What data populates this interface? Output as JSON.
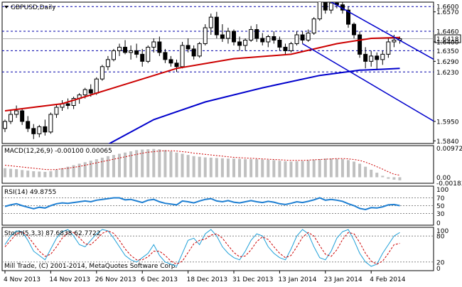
{
  "chart_data": {
    "type": "candlestick",
    "title": "GBPUSD,Daily",
    "watermark": "Mill Trade, (C) 2001-2014, MetaQuotes Software Corp.",
    "price_axis": {
      "ylim": [
        1.5825,
        1.6625
      ],
      "tick_labels": [
        "1.6570",
        "1.6400",
        "1.6290",
        "1.5950",
        "1.5840"
      ],
      "tick_values": [
        1.657,
        1.64,
        1.629,
        1.595,
        1.584
      ]
    },
    "price_levels": [
      {
        "label": "1.6600",
        "value": 1.66
      },
      {
        "label": "1.6460",
        "value": 1.646
      },
      {
        "label": "1.6418",
        "value": 1.6418,
        "current": true
      },
      {
        "label": "1.6350",
        "value": 1.635
      },
      {
        "label": "1.6230",
        "value": 1.623
      }
    ],
    "x_labels": [
      "4 Nov 2013",
      "14 Nov 2013",
      "26 Nov 2013",
      "6 Dec 2013",
      "18 Dec 2013",
      "31 Dec 2013",
      "13 Jan 2014",
      "23 Jan 2014",
      "4 Feb 2014"
    ],
    "x_label_bars": [
      0,
      8,
      16,
      24,
      32,
      40,
      48,
      56,
      64
    ],
    "candles": [
      [
        1.591,
        1.596,
        1.589,
        1.595
      ],
      [
        1.595,
        1.601,
        1.5935,
        1.599
      ],
      [
        1.599,
        1.604,
        1.597,
        1.601
      ],
      [
        1.601,
        1.602,
        1.593,
        1.595
      ],
      [
        1.595,
        1.598,
        1.589,
        1.591
      ],
      [
        1.591,
        1.5935,
        1.585,
        1.588
      ],
      [
        1.588,
        1.593,
        1.586,
        1.592
      ],
      [
        1.592,
        1.596,
        1.587,
        1.589
      ],
      [
        1.589,
        1.6,
        1.588,
        1.599
      ],
      [
        1.599,
        1.605,
        1.597,
        1.603
      ],
      [
        1.603,
        1.607,
        1.601,
        1.605
      ],
      [
        1.605,
        1.608,
        1.602,
        1.604
      ],
      [
        1.604,
        1.609,
        1.602,
        1.608
      ],
      [
        1.608,
        1.611,
        1.605,
        1.61
      ],
      [
        1.61,
        1.614,
        1.608,
        1.613
      ],
      [
        1.613,
        1.616,
        1.609,
        1.611
      ],
      [
        1.611,
        1.62,
        1.61,
        1.619
      ],
      [
        1.619,
        1.627,
        1.618,
        1.626
      ],
      [
        1.626,
        1.632,
        1.624,
        1.63
      ],
      [
        1.63,
        1.636,
        1.629,
        1.635
      ],
      [
        1.635,
        1.639,
        1.632,
        1.637
      ],
      [
        1.637,
        1.641,
        1.633,
        1.634
      ],
      [
        1.634,
        1.638,
        1.63,
        1.635
      ],
      [
        1.635,
        1.639,
        1.631,
        1.633
      ],
      [
        1.633,
        1.636,
        1.626,
        1.629
      ],
      [
        1.629,
        1.638,
        1.628,
        1.637
      ],
      [
        1.637,
        1.642,
        1.634,
        1.64
      ],
      [
        1.64,
        1.643,
        1.632,
        1.634
      ],
      [
        1.634,
        1.636,
        1.628,
        1.63
      ],
      [
        1.63,
        1.632,
        1.626,
        1.628
      ],
      [
        1.628,
        1.63,
        1.623,
        1.626
      ],
      [
        1.626,
        1.64,
        1.625,
        1.638
      ],
      [
        1.638,
        1.642,
        1.634,
        1.636
      ],
      [
        1.636,
        1.638,
        1.63,
        1.632
      ],
      [
        1.632,
        1.64,
        1.631,
        1.639
      ],
      [
        1.639,
        1.65,
        1.638,
        1.648
      ],
      [
        1.648,
        1.656,
        1.644,
        1.654
      ],
      [
        1.654,
        1.657,
        1.642,
        1.644
      ],
      [
        1.644,
        1.65,
        1.64,
        1.642
      ],
      [
        1.642,
        1.648,
        1.639,
        1.646
      ],
      [
        1.646,
        1.647,
        1.638,
        1.64
      ],
      [
        1.64,
        1.643,
        1.635,
        1.638
      ],
      [
        1.638,
        1.642,
        1.635,
        1.641
      ],
      [
        1.641,
        1.649,
        1.64,
        1.647
      ],
      [
        1.647,
        1.65,
        1.64,
        1.642
      ],
      [
        1.642,
        1.645,
        1.638,
        1.64
      ],
      [
        1.64,
        1.644,
        1.637,
        1.643
      ],
      [
        1.643,
        1.646,
        1.639,
        1.641
      ],
      [
        1.641,
        1.643,
        1.635,
        1.637
      ],
      [
        1.637,
        1.639,
        1.633,
        1.635
      ],
      [
        1.635,
        1.64,
        1.634,
        1.639
      ],
      [
        1.639,
        1.646,
        1.638,
        1.644
      ],
      [
        1.644,
        1.646,
        1.639,
        1.641
      ],
      [
        1.641,
        1.647,
        1.64,
        1.645
      ],
      [
        1.645,
        1.654,
        1.644,
        1.653
      ],
      [
        1.653,
        1.667,
        1.652,
        1.664
      ],
      [
        1.664,
        1.668,
        1.656,
        1.658
      ],
      [
        1.658,
        1.664,
        1.656,
        1.662
      ],
      [
        1.662,
        1.665,
        1.659,
        1.661
      ],
      [
        1.661,
        1.664,
        1.656,
        1.658
      ],
      [
        1.658,
        1.66,
        1.648,
        1.65
      ],
      [
        1.65,
        1.651,
        1.642,
        1.644
      ],
      [
        1.644,
        1.646,
        1.631,
        1.633
      ],
      [
        1.633,
        1.637,
        1.625,
        1.629
      ],
      [
        1.629,
        1.635,
        1.626,
        1.632
      ],
      [
        1.632,
        1.634,
        1.624,
        1.63
      ],
      [
        1.63,
        1.635,
        1.627,
        1.633
      ],
      [
        1.633,
        1.642,
        1.631,
        1.64
      ],
      [
        1.64,
        1.644,
        1.637,
        1.641
      ],
      [
        1.641,
        1.643,
        1.639,
        1.6418
      ]
    ],
    "ma_red": [
      [
        0,
        1.601
      ],
      [
        10,
        1.605
      ],
      [
        20,
        1.615
      ],
      [
        30,
        1.625
      ],
      [
        40,
        1.6305
      ],
      [
        50,
        1.633
      ],
      [
        58,
        1.639
      ],
      [
        64,
        1.642
      ],
      [
        69,
        1.6425
      ]
    ],
    "ma_blue": [
      [
        18,
        1.582
      ],
      [
        26,
        1.596
      ],
      [
        35,
        1.606
      ],
      [
        45,
        1.614
      ],
      [
        55,
        1.621
      ],
      [
        62,
        1.624
      ],
      [
        66,
        1.6245
      ],
      [
        69,
        1.625
      ]
    ],
    "trend_lines": [
      {
        "color": "#0000cc",
        "points": [
          [
            54,
            1.668
          ],
          [
            69,
            1.64
          ]
        ],
        "extended_to": [
          75,
          1.63
        ]
      },
      {
        "color": "#0000cc",
        "points": [
          [
            52,
            1.639
          ],
          [
            64,
            1.6235
          ]
        ],
        "extended_to": [
          75,
          1.595
        ]
      }
    ],
    "macd": {
      "label": "MACD(12,26,9) -0.00100 0.00065",
      "ylim": [
        -0.002,
        0.0105
      ],
      "tick_labels": [
        "0.00972",
        "0.00",
        "-0.00183"
      ],
      "tick_values": [
        0.00972,
        0.0,
        -0.00183
      ],
      "histogram": [
        0.003,
        0.0028,
        0.0027,
        0.0024,
        0.0022,
        0.002,
        0.0019,
        0.0018,
        0.002,
        0.0025,
        0.003,
        0.0035,
        0.004,
        0.0045,
        0.005,
        0.0055,
        0.006,
        0.0065,
        0.007,
        0.0074,
        0.0078,
        0.0082,
        0.0086,
        0.009,
        0.0092,
        0.0093,
        0.0094,
        0.0093,
        0.009,
        0.0086,
        0.0082,
        0.0078,
        0.0074,
        0.007,
        0.0068,
        0.0066,
        0.0065,
        0.0064,
        0.0063,
        0.0062,
        0.0062,
        0.0061,
        0.006,
        0.006,
        0.006,
        0.0059,
        0.0058,
        0.0057,
        0.0055,
        0.0053,
        0.0052,
        0.0053,
        0.0054,
        0.0056,
        0.0058,
        0.006,
        0.0062,
        0.0062,
        0.0061,
        0.006,
        0.0057,
        0.0052,
        0.0045,
        0.0035,
        0.0025,
        0.0015,
        0.0005,
        -0.0005,
        -0.0008,
        -0.001
      ],
      "signal": [
        0.004,
        0.0038,
        0.0036,
        0.0034,
        0.0032,
        0.003,
        0.0028,
        0.0026,
        0.0025,
        0.0026,
        0.0028,
        0.003,
        0.0033,
        0.0036,
        0.004,
        0.0044,
        0.0048,
        0.0052,
        0.0056,
        0.006,
        0.0064,
        0.0068,
        0.0072,
        0.0076,
        0.008,
        0.0083,
        0.0085,
        0.0087,
        0.0088,
        0.0088,
        0.0087,
        0.0085,
        0.0083,
        0.008,
        0.0078,
        0.0076,
        0.0074,
        0.0072,
        0.007,
        0.0068,
        0.0066,
        0.0065,
        0.0064,
        0.0063,
        0.0062,
        0.0061,
        0.006,
        0.0059,
        0.0058,
        0.0057,
        0.0056,
        0.0056,
        0.0056,
        0.0057,
        0.0058,
        0.0059,
        0.006,
        0.0061,
        0.0062,
        0.0062,
        0.0061,
        0.0059,
        0.0056,
        0.005,
        0.0043,
        0.0035,
        0.0027,
        0.0018,
        0.001,
        0.0007
      ]
    },
    "rsi": {
      "label": "RSI(14) 49.8755",
      "ylim": [
        0,
        100
      ],
      "tick_labels": [
        "100",
        "70",
        "50",
        "30",
        "0"
      ],
      "tick_values": [
        100,
        70,
        50,
        30,
        0
      ],
      "levels": [
        70,
        50,
        30
      ],
      "values": [
        48,
        52,
        55,
        50,
        46,
        42,
        46,
        44,
        50,
        55,
        57,
        56,
        58,
        60,
        62,
        60,
        64,
        66,
        68,
        70,
        70,
        65,
        66,
        62,
        58,
        64,
        66,
        60,
        56,
        54,
        52,
        62,
        60,
        57,
        62,
        66,
        68,
        62,
        60,
        63,
        59,
        57,
        60,
        63,
        60,
        58,
        61,
        59,
        55,
        53,
        56,
        60,
        58,
        61,
        65,
        70,
        64,
        66,
        64,
        61,
        55,
        50,
        43,
        40,
        45,
        44,
        47,
        52,
        53,
        50
      ]
    },
    "stoch": {
      "label": "Stoch(5,3,3) 87.6838 62.7722",
      "ylim": [
        0,
        100
      ],
      "tick_labels": [
        "100",
        "80",
        "20",
        "0"
      ],
      "tick_values": [
        100,
        80,
        20,
        0
      ],
      "levels": [
        80,
        20
      ],
      "main": [
        60,
        80,
        92,
        90,
        70,
        45,
        35,
        25,
        50,
        75,
        90,
        95,
        80,
        60,
        55,
        70,
        85,
        95,
        92,
        75,
        55,
        35,
        25,
        20,
        30,
        40,
        60,
        35,
        20,
        15,
        10,
        40,
        70,
        75,
        60,
        85,
        95,
        80,
        55,
        40,
        30,
        25,
        45,
        70,
        85,
        80,
        55,
        40,
        30,
        25,
        50,
        80,
        95,
        85,
        55,
        30,
        25,
        45,
        75,
        90,
        95,
        70,
        40,
        20,
        10,
        15,
        40,
        60,
        80,
        88
      ],
      "signal": [
        55,
        70,
        85,
        90,
        80,
        62,
        45,
        33,
        38,
        55,
        75,
        88,
        88,
        76,
        62,
        60,
        72,
        86,
        92,
        86,
        70,
        50,
        35,
        25,
        25,
        32,
        45,
        45,
        35,
        22,
        15,
        22,
        42,
        62,
        70,
        73,
        82,
        85,
        75,
        58,
        42,
        32,
        34,
        48,
        67,
        78,
        72,
        55,
        40,
        30,
        35,
        55,
        77,
        88,
        80,
        58,
        38,
        33,
        48,
        72,
        88,
        85,
        65,
        40,
        22,
        15,
        22,
        40,
        60,
        63
      ]
    },
    "colors": {
      "bull": "#ffffff",
      "bear": "#000000",
      "ma_red": "#cc0000",
      "ma_blue": "#0000cc",
      "trend": "#0000cc",
      "macd_hist": "#c0c0c0",
      "macd_signal": "#cc0000",
      "rsi": "#1e7fd2",
      "stoch_main": "#1fa0d8",
      "stoch_signal": "#cc0000",
      "dashed_level": "#0000aa",
      "frame": "#000000"
    }
  }
}
